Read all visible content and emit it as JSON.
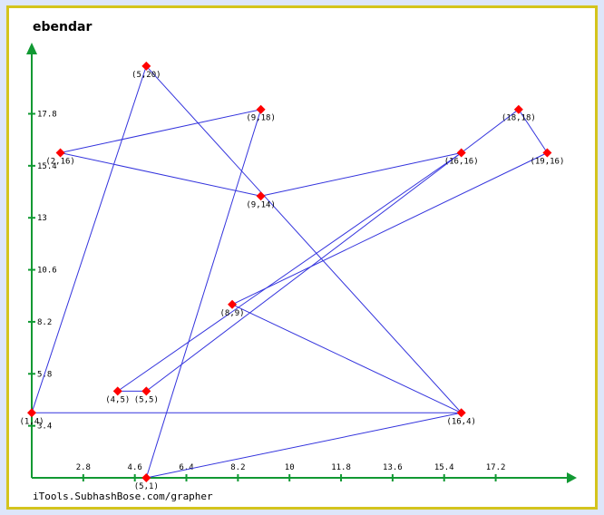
{
  "chart_data": {
    "type": "line",
    "title": "ebendar",
    "footer": "iTools.SubhashBose.com/grapher",
    "xlim": [
      1,
      20
    ],
    "ylim": [
      1,
      21
    ],
    "x_ticks": [
      "2.8",
      "4.6",
      "6.4",
      "8.2",
      "10",
      "11.8",
      "13.6",
      "15.4",
      "17.2"
    ],
    "y_ticks": [
      "3.4",
      "5.8",
      "8.2",
      "10.6",
      "13",
      "15.4",
      "17.8"
    ],
    "points": [
      {
        "x": 1,
        "y": 4,
        "label": "(1,4)"
      },
      {
        "x": 5,
        "y": 20,
        "label": "(5,20)"
      },
      {
        "x": 16,
        "y": 4,
        "label": "(16,4)"
      },
      {
        "x": 8,
        "y": 9,
        "label": "(8,9)"
      },
      {
        "x": 19,
        "y": 16,
        "label": "(19,16)"
      },
      {
        "x": 18,
        "y": 18,
        "label": "(18,18)"
      },
      {
        "x": 16,
        "y": 16,
        "label": "(16,16)"
      },
      {
        "x": 5,
        "y": 5,
        "label": "(5,5)"
      },
      {
        "x": 4,
        "y": 5,
        "label": "(4,5)"
      },
      {
        "x": 16,
        "y": 16,
        "label": "(16,16)"
      },
      {
        "x": 9,
        "y": 14,
        "label": "(9,14)"
      },
      {
        "x": 2,
        "y": 16,
        "label": "(2,16)"
      }
    ],
    "points_part2": [
      {
        "x": 9,
        "y": 18,
        "label": "(9,18)"
      },
      {
        "x": 5,
        "y": 1,
        "label": "(5,1)"
      },
      {
        "x": 16,
        "y": 4,
        "label": "(16,4)"
      },
      {
        "x": 1,
        "y": 4,
        "label": "(1,4)"
      }
    ],
    "colors": {
      "line": "#3333dd",
      "marker": "#ff0000",
      "axis": "#119933",
      "frame": "#d4c41c",
      "background": "#dde6fa"
    }
  }
}
